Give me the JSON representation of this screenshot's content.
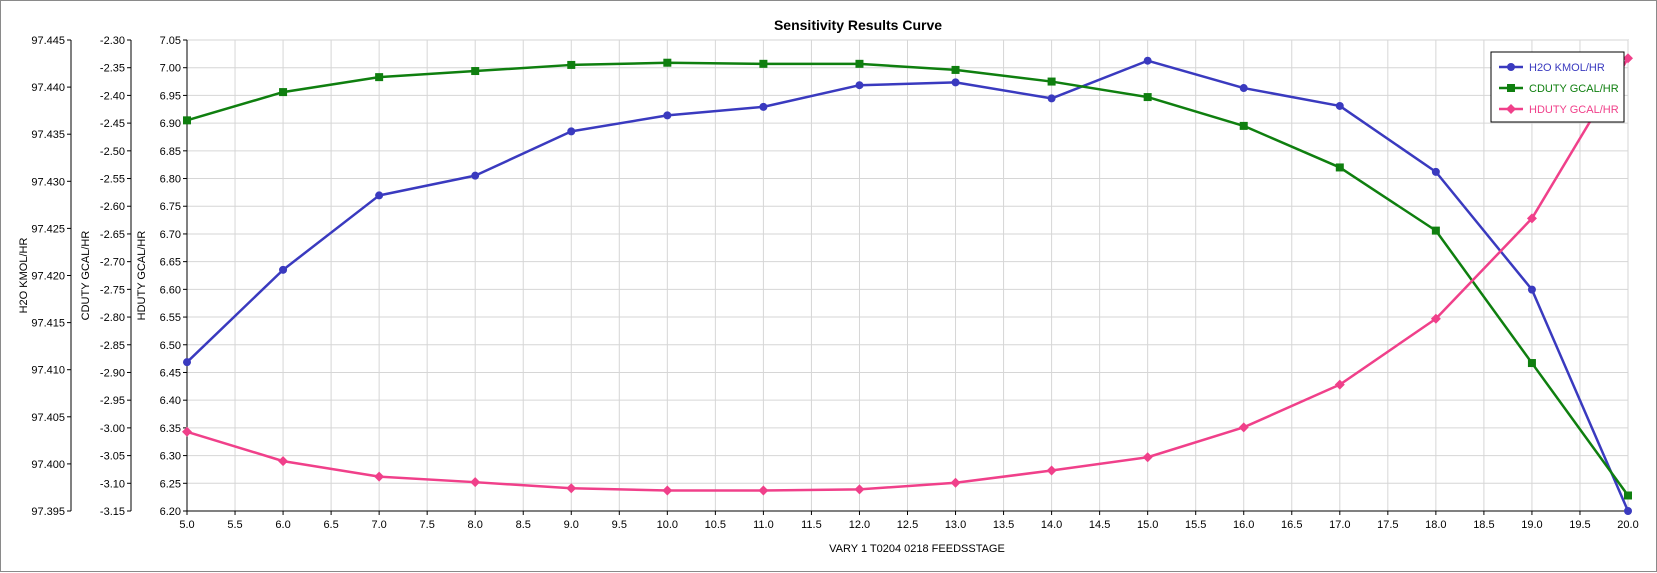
{
  "chart_data": {
    "type": "line",
    "title": "Sensitivity Results Curve",
    "xlabel": "VARY   1 T0204 0218 FEEDSSTAGE",
    "xlim": [
      5.0,
      20.0
    ],
    "x_ticks": [
      "5.0",
      "5.5",
      "6.0",
      "6.5",
      "7.0",
      "7.5",
      "8.0",
      "8.5",
      "9.0",
      "9.5",
      "10.0",
      "10.5",
      "11.0",
      "11.5",
      "12.0",
      "12.5",
      "13.0",
      "13.5",
      "14.0",
      "14.5",
      "15.0",
      "15.5",
      "16.0",
      "16.5",
      "17.0",
      "17.5",
      "18.0",
      "18.5",
      "19.0",
      "19.5",
      "20.0"
    ],
    "grid": true,
    "legend_position": "top-right",
    "x": [
      5,
      6,
      7,
      8,
      9,
      10,
      11,
      12,
      13,
      14,
      15,
      16,
      17,
      18,
      19,
      20
    ],
    "axes": [
      {
        "label": "H2O KMOL/HR",
        "ylim": [
          97.395,
          97.445
        ],
        "ticks": [
          "97.445",
          "97.440",
          "97.435",
          "97.430",
          "97.425",
          "97.420",
          "97.415",
          "97.410",
          "97.405",
          "97.400",
          "97.395"
        ]
      },
      {
        "label": "CDUTY GCAL/HR",
        "ylim": [
          -3.15,
          -2.3
        ],
        "ticks": [
          "-2.30",
          "-2.35",
          "-2.40",
          "-2.45",
          "-2.50",
          "-2.55",
          "-2.60",
          "-2.65",
          "-2.70",
          "-2.75",
          "-2.80",
          "-2.85",
          "-2.90",
          "-2.95",
          "-3.00",
          "-3.05",
          "-3.10",
          "-3.15"
        ]
      },
      {
        "label": "HDUTY GCAL/HR",
        "ylim": [
          6.2,
          7.05
        ],
        "ticks": [
          "7.05",
          "7.00",
          "6.95",
          "6.90",
          "6.85",
          "6.80",
          "6.75",
          "6.70",
          "6.65",
          "6.60",
          "6.55",
          "6.50",
          "6.45",
          "6.40",
          "6.35",
          "6.30",
          "6.25",
          "6.20"
        ]
      }
    ],
    "series": [
      {
        "name": "H2O KMOL/HR",
        "axis": 0,
        "color": "#3a3abf",
        "marker": "circle",
        "values": [
          97.4108,
          97.4206,
          97.4285,
          97.4306,
          97.4353,
          97.437,
          97.4379,
          97.4402,
          97.4405,
          97.4388,
          97.4428,
          97.4399,
          97.438,
          97.431,
          97.4185,
          97.395
        ]
      },
      {
        "name": "CDUTY GCAL/HR",
        "axis": 1,
        "color": "#0f7f0f",
        "marker": "square",
        "values": [
          -2.445,
          -2.394,
          -2.367,
          -2.356,
          -2.345,
          -2.341,
          -2.343,
          -2.343,
          -2.354,
          -2.375,
          -2.403,
          -2.455,
          -2.53,
          -2.644,
          -2.883,
          -3.122
        ]
      },
      {
        "name": "HDUTY GCAL/HR",
        "axis": 2,
        "color": "#f0408a",
        "marker": "diamond",
        "values": [
          6.343,
          6.29,
          6.262,
          6.252,
          6.241,
          6.237,
          6.237,
          6.239,
          6.251,
          6.273,
          6.297,
          6.351,
          6.428,
          6.547,
          6.728,
          7.017
        ]
      }
    ]
  }
}
